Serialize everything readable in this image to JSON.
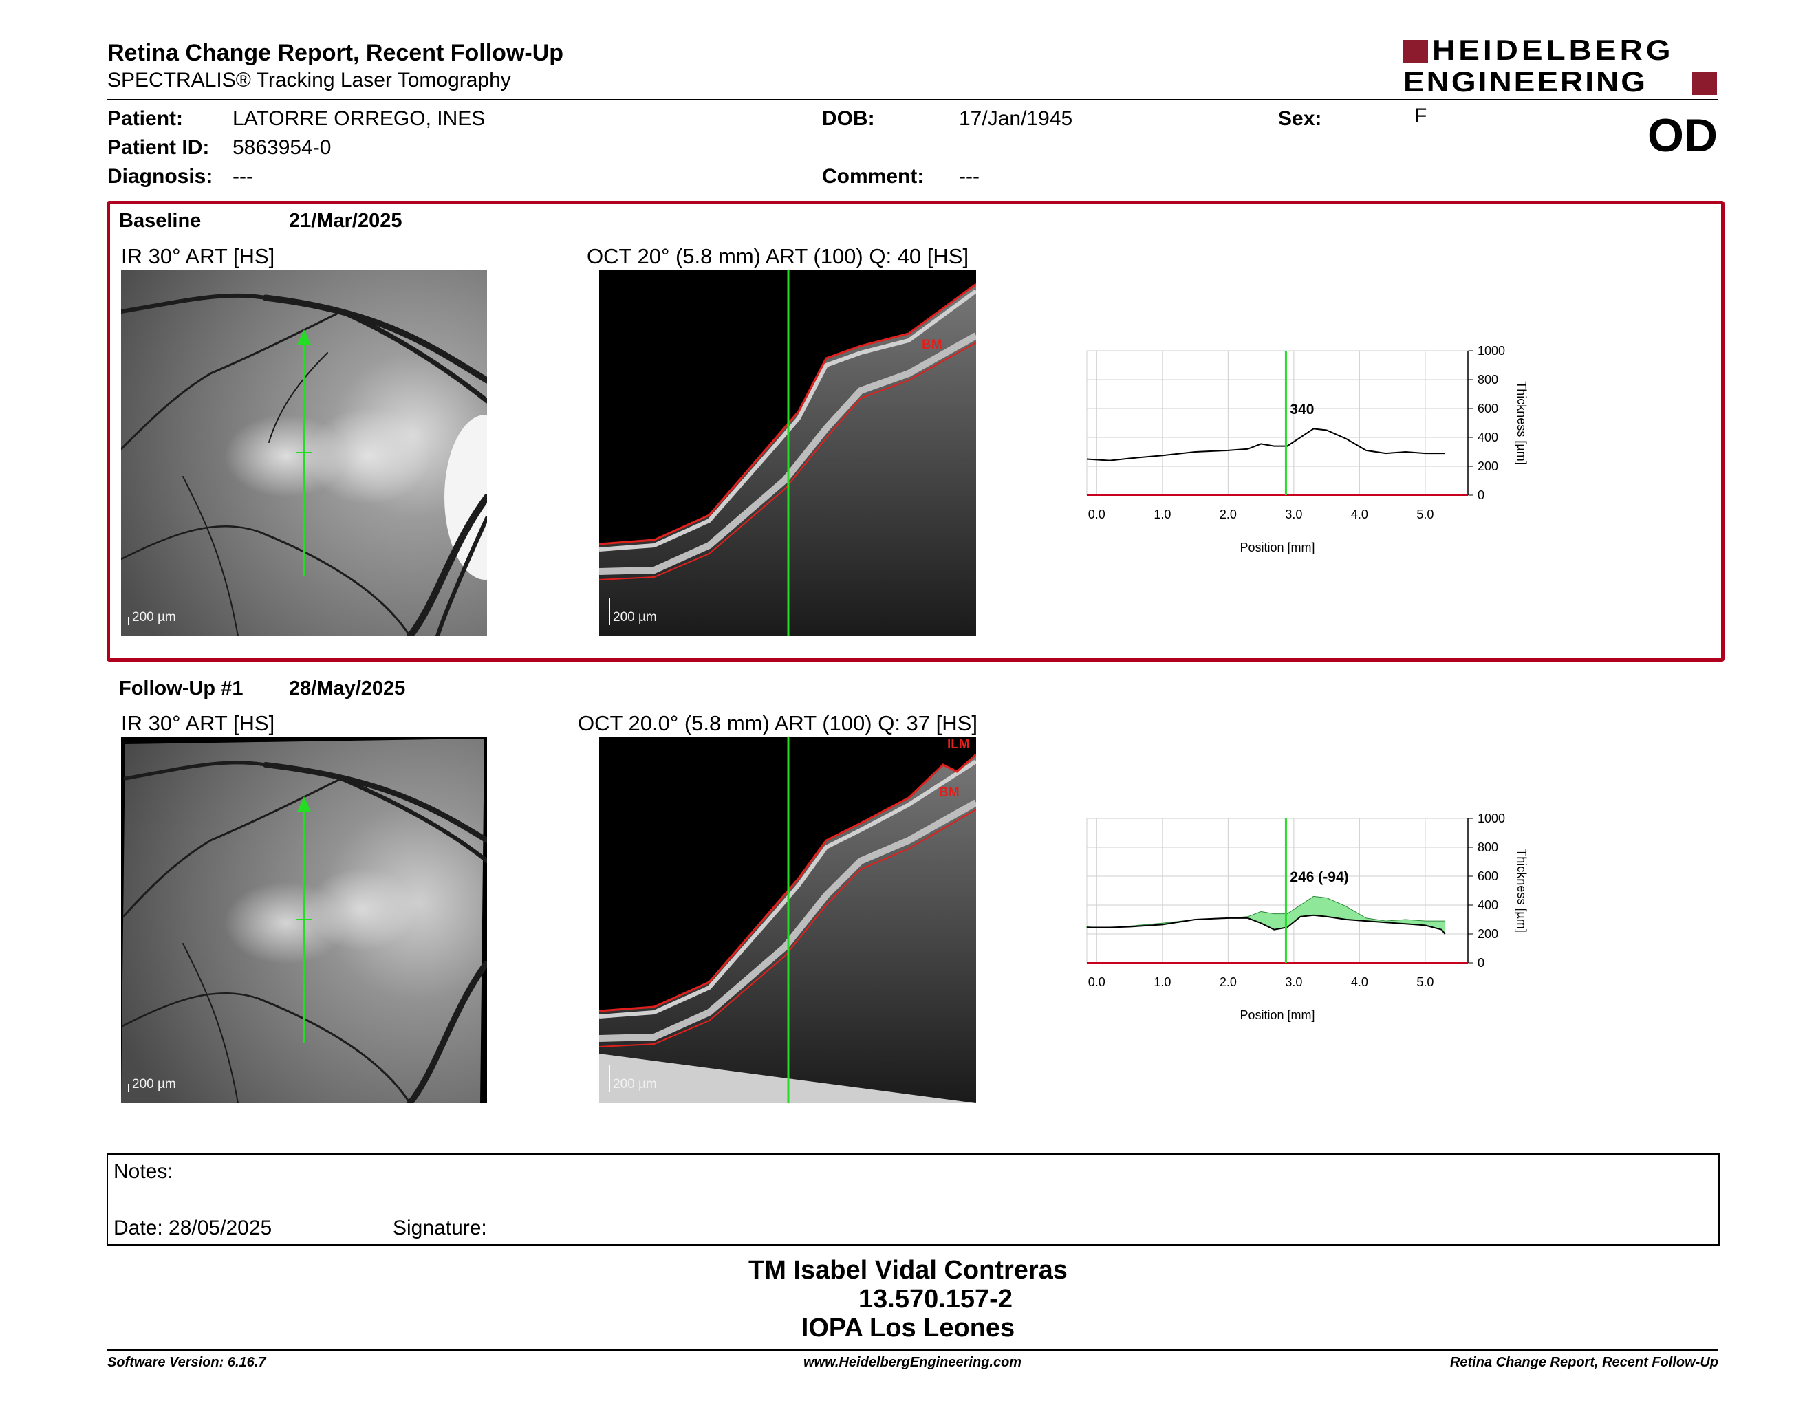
{
  "header": {
    "title": "Retina Change Report, Recent Follow-Up",
    "subtitle": "SPECTRALIS® Tracking Laser Tomography",
    "logo_line1": "HEIDELBERG",
    "logo_line2": "ENGINEERING",
    "eye": "OD"
  },
  "patient": {
    "name_label": "Patient:",
    "name": "LATORRE ORREGO, INES",
    "id_label": "Patient ID:",
    "id": "5863954-0",
    "diagnosis_label": "Diagnosis:",
    "diagnosis": "---",
    "dob_label": "DOB:",
    "dob": "17/Jan/1945",
    "comment_label": "Comment:",
    "comment": "---",
    "sex_label": "Sex:",
    "sex": "F"
  },
  "baseline": {
    "label": "Baseline",
    "date": "21/Mar/2025",
    "ir_title": "IR 30° ART [HS]",
    "oct_title": "OCT 20° (5.8 mm) ART (100) Q: 40 [HS]",
    "scale_ir": "200 µm",
    "scale_oct": "200 µm",
    "layer_bm": "BM"
  },
  "followup": {
    "label": "Follow-Up #1",
    "date": "28/May/2025",
    "ir_title": "IR 30° ART [HS]",
    "oct_title": "OCT 20.0° (5.8 mm) ART (100) Q: 37 [HS]",
    "scale_ir": "200 µm",
    "scale_oct": "200 µm",
    "layer_ilm": "ILM",
    "layer_bm": "BM"
  },
  "colors": {
    "accent": "#b0001e",
    "scanline": "#22dd22",
    "segmentation": "#e0201c",
    "difference_fill": "#8fe89a"
  },
  "chart_data": [
    {
      "type": "line",
      "name": "baseline-thickness",
      "xlabel": "Position [mm]",
      "ylabel": "Thickness [µm]",
      "xlim": [
        -0.15,
        5.65
      ],
      "ylim": [
        0,
        1000
      ],
      "xticks": [
        "0.0",
        "1.0",
        "2.0",
        "3.0",
        "4.0",
        "5.0"
      ],
      "yticks": [
        "0",
        "200",
        "400",
        "600",
        "800",
        "1000"
      ],
      "cursor_x": 2.88,
      "cursor_label": "340",
      "series": [
        {
          "x": [
            -0.15,
            0.2,
            0.5,
            1.0,
            1.5,
            2.0,
            2.3,
            2.5,
            2.7,
            2.9,
            3.1,
            3.3,
            3.5,
            3.8,
            4.1,
            4.4,
            4.7,
            5.0,
            5.3
          ],
          "values": [
            250,
            240,
            255,
            275,
            300,
            310,
            320,
            355,
            340,
            340,
            400,
            460,
            450,
            390,
            310,
            290,
            300,
            290,
            290
          ]
        }
      ]
    },
    {
      "type": "area",
      "name": "followup-thickness",
      "xlabel": "Position [mm]",
      "ylabel": "Thickness [µm]",
      "xlim": [
        -0.15,
        5.65
      ],
      "ylim": [
        0,
        1000
      ],
      "xticks": [
        "0.0",
        "1.0",
        "2.0",
        "3.0",
        "4.0",
        "5.0"
      ],
      "yticks": [
        "0",
        "200",
        "400",
        "600",
        "800",
        "1000"
      ],
      "cursor_x": 2.88,
      "cursor_label": "246 (-94)",
      "series": [
        {
          "x": [
            -0.15,
            0.2,
            0.5,
            1.0,
            1.5,
            2.0,
            2.3,
            2.5,
            2.7,
            2.9,
            3.1,
            3.3,
            3.5,
            3.8,
            4.1,
            4.4,
            4.7,
            5.0,
            5.3
          ],
          "values": [
            250,
            240,
            255,
            275,
            300,
            310,
            320,
            355,
            340,
            340,
            400,
            460,
            450,
            390,
            310,
            290,
            300,
            290,
            290
          ]
        },
        {
          "x": [
            -0.15,
            0.2,
            0.5,
            1.0,
            1.5,
            2.0,
            2.3,
            2.5,
            2.7,
            2.9,
            3.1,
            3.3,
            3.5,
            3.8,
            4.1,
            4.4,
            4.7,
            5.0,
            5.25,
            5.3
          ],
          "values": [
            245,
            245,
            250,
            265,
            300,
            310,
            310,
            275,
            230,
            246,
            320,
            330,
            320,
            300,
            290,
            280,
            270,
            260,
            230,
            200
          ]
        }
      ]
    }
  ],
  "notes": {
    "notes_label": "Notes:",
    "date_label": "Date: 28/05/2025",
    "signature_label": "Signature:"
  },
  "signature_block": {
    "line1": "TM Isabel Vidal Contreras",
    "line2": "13.570.157-2",
    "line3": "IOPA Los Leones"
  },
  "footer": {
    "software": "Software Version: 6.16.7",
    "website": "www.HeidelbergEngineering.com",
    "report": "Retina Change Report, Recent Follow-Up"
  }
}
